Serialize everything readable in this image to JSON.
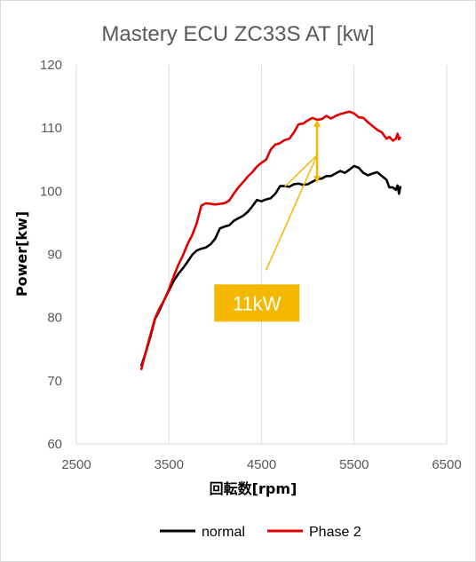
{
  "chart_data": {
    "type": "line",
    "title": "Mastery ECU ZC33S AT [kw]",
    "xlabel": "回転数[rpm]",
    "ylabel": "Power[kw]",
    "xlim": [
      2500,
      6500
    ],
    "ylim": [
      60,
      120
    ],
    "x_ticks": [
      2500,
      3500,
      4500,
      5500,
      6500
    ],
    "y_ticks": [
      60,
      70,
      80,
      90,
      100,
      110,
      120
    ],
    "grid": "vertical",
    "legend": "bottom",
    "series": [
      {
        "name": "normal",
        "color": "#000000",
        "points": [
          [
            3200,
            72.3
          ],
          [
            3250,
            74.5
          ],
          [
            3300,
            77
          ],
          [
            3350,
            79.8
          ],
          [
            3400,
            81.2
          ],
          [
            3450,
            82.8
          ],
          [
            3500,
            84.3
          ],
          [
            3550,
            85.8
          ],
          [
            3600,
            86.9
          ],
          [
            3650,
            87.8
          ],
          [
            3700,
            88.8
          ],
          [
            3750,
            89.9
          ],
          [
            3800,
            90.6
          ],
          [
            3850,
            90.9
          ],
          [
            3900,
            91.1
          ],
          [
            3950,
            91.6
          ],
          [
            4000,
            92.5
          ],
          [
            4050,
            94.1
          ],
          [
            4100,
            94.4
          ],
          [
            4150,
            94.6
          ],
          [
            4200,
            95.3
          ],
          [
            4250,
            95.7
          ],
          [
            4300,
            96.1
          ],
          [
            4350,
            96.7
          ],
          [
            4400,
            97.6
          ],
          [
            4450,
            98.6
          ],
          [
            4500,
            98.4
          ],
          [
            4550,
            98.7
          ],
          [
            4600,
            98.9
          ],
          [
            4650,
            99.6
          ],
          [
            4700,
            100.8
          ],
          [
            4750,
            100.8
          ],
          [
            4800,
            100.7
          ],
          [
            4850,
            101.1
          ],
          [
            4900,
            101.2
          ],
          [
            4950,
            101.0
          ],
          [
            5000,
            101.1
          ],
          [
            5050,
            101.5
          ],
          [
            5100,
            101.9
          ],
          [
            5150,
            102.0
          ],
          [
            5200,
            102.4
          ],
          [
            5250,
            102.4
          ],
          [
            5300,
            102.8
          ],
          [
            5350,
            103.2
          ],
          [
            5400,
            102.9
          ],
          [
            5450,
            103.4
          ],
          [
            5500,
            104.0
          ],
          [
            5550,
            103.7
          ],
          [
            5600,
            102.9
          ],
          [
            5650,
            102.5
          ],
          [
            5700,
            102.8
          ],
          [
            5750,
            103.0
          ],
          [
            5800,
            102.4
          ],
          [
            5850,
            101.8
          ],
          [
            5880,
            100.6
          ],
          [
            5920,
            100.6
          ],
          [
            5950,
            100.2
          ],
          [
            5970,
            100.9
          ],
          [
            5985,
            99.6
          ],
          [
            6000,
            100.8
          ]
        ]
      },
      {
        "name": "Phase 2",
        "color": "#e00000",
        "points": [
          [
            3200,
            71.7
          ],
          [
            3250,
            74.6
          ],
          [
            3300,
            77.3
          ],
          [
            3350,
            79.9
          ],
          [
            3400,
            81.5
          ],
          [
            3450,
            82.8
          ],
          [
            3500,
            84.5
          ],
          [
            3550,
            86.5
          ],
          [
            3600,
            88.3
          ],
          [
            3650,
            89.8
          ],
          [
            3700,
            91.6
          ],
          [
            3750,
            93
          ],
          [
            3800,
            94.9
          ],
          [
            3850,
            97.7
          ],
          [
            3900,
            98.1
          ],
          [
            3950,
            98.0
          ],
          [
            4000,
            97.9
          ],
          [
            4050,
            98.0
          ],
          [
            4100,
            98.1
          ],
          [
            4150,
            98.5
          ],
          [
            4200,
            99.6
          ],
          [
            4250,
            100.6
          ],
          [
            4300,
            101.4
          ],
          [
            4350,
            102.3
          ],
          [
            4400,
            103.0
          ],
          [
            4450,
            103.9
          ],
          [
            4500,
            104.5
          ],
          [
            4550,
            105.0
          ],
          [
            4600,
            106.6
          ],
          [
            4650,
            107.4
          ],
          [
            4700,
            107.6
          ],
          [
            4750,
            108.1
          ],
          [
            4800,
            108.3
          ],
          [
            4850,
            109.3
          ],
          [
            4900,
            110.6
          ],
          [
            4950,
            110.7
          ],
          [
            5000,
            111.2
          ],
          [
            5050,
            111.6
          ],
          [
            5100,
            111.3
          ],
          [
            5150,
            111.4
          ],
          [
            5200,
            111.9
          ],
          [
            5250,
            111.5
          ],
          [
            5300,
            111.9
          ],
          [
            5350,
            112.2
          ],
          [
            5400,
            112.4
          ],
          [
            5450,
            112.6
          ],
          [
            5500,
            112.3
          ],
          [
            5550,
            111.7
          ],
          [
            5600,
            111.6
          ],
          [
            5650,
            110.9
          ],
          [
            5700,
            110.3
          ],
          [
            5750,
            109.7
          ],
          [
            5800,
            109.3
          ],
          [
            5850,
            108.3
          ],
          [
            5880,
            108.6
          ],
          [
            5920,
            108.0
          ],
          [
            5950,
            108.3
          ],
          [
            5970,
            109.1
          ],
          [
            5985,
            108.2
          ],
          [
            6000,
            108.6
          ]
        ]
      }
    ],
    "annotation": {
      "text": "11kW",
      "color": "#f5b800",
      "x": 5100,
      "y_from": 101.3,
      "y_to": 111.3,
      "leader_from": [
        5100,
        105.7
      ],
      "leader_to": [
        4550,
        87.5
      ],
      "leader_to_2": [
        4750,
        100.7
      ],
      "box_center": [
        4450,
        82.3
      ]
    }
  }
}
